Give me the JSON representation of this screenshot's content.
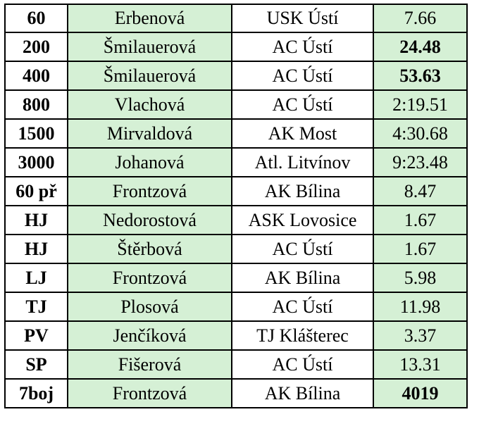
{
  "table": {
    "rows": [
      {
        "event": "60",
        "athlete": "Erbenová",
        "club": "USK Ústí",
        "result": "7.66",
        "result_bold": false
      },
      {
        "event": "200",
        "athlete": "Šmilauerová",
        "club": "AC Ústí",
        "result": "24.48",
        "result_bold": true
      },
      {
        "event": "400",
        "athlete": "Šmilauerová",
        "club": "AC Ústí",
        "result": "53.63",
        "result_bold": true
      },
      {
        "event": "800",
        "athlete": "Vlachová",
        "club": "AC Ústí",
        "result": "2:19.51",
        "result_bold": false
      },
      {
        "event": "1500",
        "athlete": "Mirvaldová",
        "club": "AK Most",
        "result": "4:30.68",
        "result_bold": false
      },
      {
        "event": "3000",
        "athlete": "Johanová",
        "club": "Atl. Litvínov",
        "result": "9:23.48",
        "result_bold": false
      },
      {
        "event": "60 př",
        "athlete": "Frontzová",
        "club": "AK Bílina",
        "result": "8.47",
        "result_bold": false
      },
      {
        "event": "HJ",
        "athlete": "Nedorostová",
        "club": "ASK Lovosice",
        "result": "1.67",
        "result_bold": false
      },
      {
        "event": "HJ",
        "athlete": "Štěrbová",
        "club": "AC Ústí",
        "result": "1.67",
        "result_bold": false
      },
      {
        "event": "LJ",
        "athlete": "Frontzová",
        "club": "AK Bílina",
        "result": "5.98",
        "result_bold": false
      },
      {
        "event": "TJ",
        "athlete": "Plosová",
        "club": "AC Ústí",
        "result": "11.98",
        "result_bold": false
      },
      {
        "event": "PV",
        "athlete": "Jenčíková",
        "club": "TJ Klášterec",
        "result": "3.37",
        "result_bold": false
      },
      {
        "event": "SP",
        "athlete": "Fišerová",
        "club": "AC Ústí",
        "result": "13.31",
        "result_bold": false
      },
      {
        "event": "7boj",
        "athlete": "Frontzová",
        "club": "AK Bílina",
        "result": "4019",
        "result_bold": true
      }
    ]
  },
  "colors": {
    "green_fill": "#d5f0d5",
    "border": "#000000",
    "background": "#ffffff"
  }
}
